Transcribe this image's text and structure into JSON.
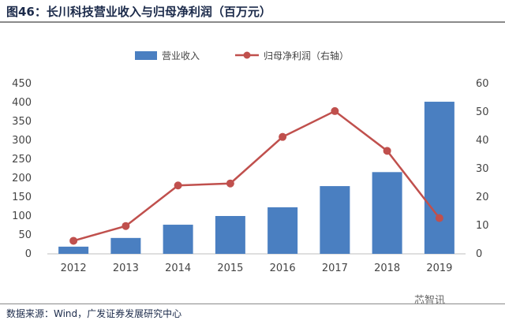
{
  "header": {
    "title": "图46：长川科技营业收入与归母净利润（百万元）"
  },
  "footer": {
    "source": "数据来源：Wind，广发证券发展研究中心"
  },
  "watermark": {
    "text": "芯智讯"
  },
  "chart_data": {
    "type": "bar",
    "title": "图46：长川科技营业收入与归母净利润（百万元）",
    "categories": [
      "2012",
      "2013",
      "2014",
      "2015",
      "2016",
      "2017",
      "2018",
      "2019"
    ],
    "series": [
      {
        "name": "营业收入",
        "type": "bar",
        "axis": "left",
        "color": "#4a7fc1",
        "values": [
          19,
          42,
          77,
          100,
          123,
          179,
          216,
          402
        ]
      },
      {
        "name": "归母净利润（右轴）",
        "type": "line",
        "axis": "right",
        "color": "#c0504d",
        "values": [
          4.6,
          9.8,
          24.1,
          24.8,
          41.2,
          50.3,
          36.3,
          12.6
        ]
      }
    ],
    "y_left": {
      "min": 0,
      "max": 450,
      "ticks": [
        0,
        50,
        100,
        150,
        200,
        250,
        300,
        350,
        400,
        450
      ]
    },
    "y_right": {
      "min": 0,
      "max": 60,
      "ticks": [
        0,
        10,
        20,
        30,
        40,
        50,
        60
      ]
    },
    "legend_position": "top-center",
    "grid": false
  }
}
